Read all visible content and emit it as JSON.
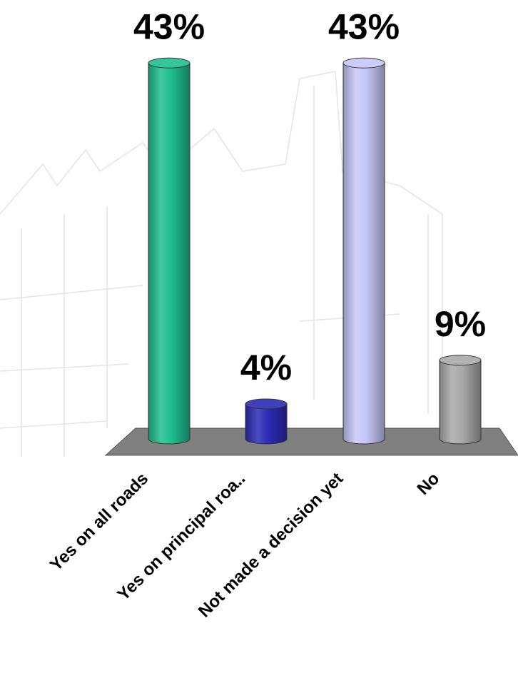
{
  "chart_data": {
    "type": "bar",
    "categories": [
      "Yes on all roads",
      "Yes on principal roa..",
      "Not made a decision yet",
      "No"
    ],
    "values": [
      43,
      4,
      43,
      9
    ],
    "value_labels": [
      "43%",
      "4%",
      "43%",
      "9%"
    ],
    "colors": [
      "#1fbf8f",
      "#2b2bb5",
      "#c6c6f7",
      "#a9a9a9"
    ]
  }
}
